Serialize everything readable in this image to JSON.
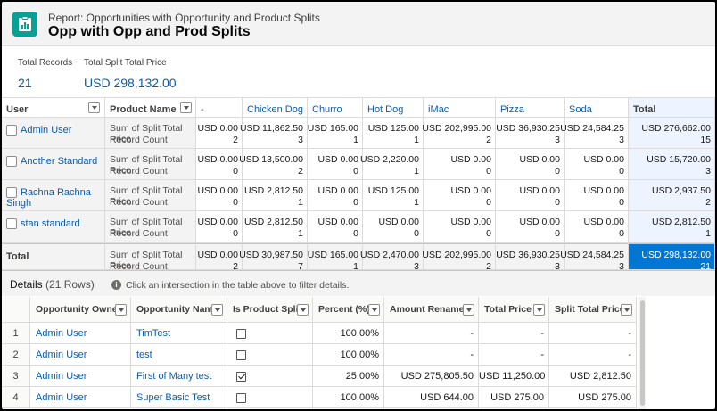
{
  "header": {
    "subtitle": "Report: Opportunities with Opportunity and Product Splits",
    "title": "Opp with Opp and Prod Splits",
    "icon": "report-icon"
  },
  "summary": {
    "total_records_label": "Total Records",
    "total_records_value": "21",
    "total_split_label": "Total Split Total Price",
    "total_split_value": "USD 298,132.00"
  },
  "matrix": {
    "user_header": "User",
    "product_header": "Product Name",
    "columns": [
      "-",
      "Chicken Dog",
      "Churro",
      "Hot Dog",
      "iMac",
      "Pizza",
      "Soda",
      "Total"
    ],
    "metric_1": "Sum of Split Total Price",
    "metric_2": "Record Count",
    "rows": [
      {
        "user": "Admin User",
        "sums": [
          "USD 0.00",
          "USD 11,862.50",
          "USD 165.00",
          "USD 125.00",
          "USD 202,995.00",
          "USD 36,930.25",
          "USD 24,584.25",
          "USD 276,662.00"
        ],
        "counts": [
          "2",
          "3",
          "1",
          "1",
          "2",
          "3",
          "3",
          "15"
        ]
      },
      {
        "user": "Another Standard",
        "sums": [
          "USD 0.00",
          "USD 13,500.00",
          "USD 0.00",
          "USD 2,220.00",
          "USD 0.00",
          "USD 0.00",
          "USD 0.00",
          "USD 15,720.00"
        ],
        "counts": [
          "0",
          "2",
          "0",
          "1",
          "0",
          "0",
          "0",
          "3"
        ]
      },
      {
        "user": "Rachna Rachna Singh",
        "sums": [
          "USD 0.00",
          "USD 2,812.50",
          "USD 0.00",
          "USD 125.00",
          "USD 0.00",
          "USD 0.00",
          "USD 0.00",
          "USD 2,937.50"
        ],
        "counts": [
          "0",
          "1",
          "0",
          "1",
          "0",
          "0",
          "0",
          "2"
        ]
      },
      {
        "user": "stan standard",
        "sums": [
          "USD 0.00",
          "USD 2,812.50",
          "USD 0.00",
          "USD 0.00",
          "USD 0.00",
          "USD 0.00",
          "USD 0.00",
          "USD 2,812.50"
        ],
        "counts": [
          "0",
          "1",
          "0",
          "0",
          "0",
          "0",
          "0",
          "1"
        ]
      }
    ],
    "total_label": "Total",
    "total_sums": [
      "USD 0.00",
      "USD 30,987.50",
      "USD 165.00",
      "USD 2,470.00",
      "USD 202,995.00",
      "USD 36,930.25",
      "USD 24,584.25",
      "USD 298,132.00"
    ],
    "total_counts": [
      "2",
      "7",
      "1",
      "3",
      "2",
      "3",
      "3",
      "21"
    ]
  },
  "details": {
    "title": "Details",
    "count": "(21 Rows)",
    "info_text": "Click an intersection in the table above to filter details.",
    "columns": [
      "Opportunity Owner",
      "Opportunity Name",
      "Is Product Split",
      "Percent (%)",
      "Amount Renamed",
      "Total Price",
      "Split Total Price"
    ],
    "rows": [
      {
        "n": "1",
        "owner": "Admin User",
        "name": "TimTest",
        "split": false,
        "percent": "100.00%",
        "amount": "-",
        "total": "-",
        "split_total": "-"
      },
      {
        "n": "2",
        "owner": "Admin User",
        "name": "test",
        "split": false,
        "percent": "100.00%",
        "amount": "-",
        "total": "-",
        "split_total": "-"
      },
      {
        "n": "3",
        "owner": "Admin User",
        "name": "First of Many test",
        "split": true,
        "percent": "25.00%",
        "amount": "USD 275,805.50",
        "total": "USD 11,250.00",
        "split_total": "USD 2,812.50"
      },
      {
        "n": "4",
        "owner": "Admin User",
        "name": "Super Basic Test",
        "split": false,
        "percent": "100.00%",
        "amount": "USD 644.00",
        "total": "USD 275.00",
        "split_total": "USD 275.00"
      }
    ]
  },
  "colors": {
    "accent": "#0176d3",
    "link": "#0b5cab",
    "icon_bg": "#08a095"
  }
}
